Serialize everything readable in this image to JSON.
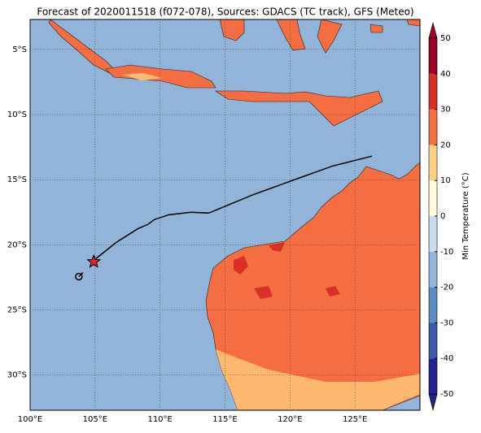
{
  "title": "Forecast of 2020011518 (f072-078), Sources: GDACS (TC track), GFS (Meteo)",
  "map": {
    "lonlim": [
      100,
      130
    ],
    "latlim": [
      -32.7,
      -2.7
    ],
    "lonticks": [
      {
        "value": 100,
        "label": "100°E"
      },
      {
        "value": 105,
        "label": "105°E"
      },
      {
        "value": 110,
        "label": "110°E"
      },
      {
        "value": 115,
        "label": "115°E"
      },
      {
        "value": 120,
        "label": "120°E"
      },
      {
        "value": 125,
        "label": "125°E"
      }
    ],
    "latticks": [
      {
        "value": -5,
        "label": "5°S"
      },
      {
        "value": -10,
        "label": "10°S"
      },
      {
        "value": -15,
        "label": "15°S"
      },
      {
        "value": -20,
        "label": "20°S"
      },
      {
        "value": -25,
        "label": "25°S"
      },
      {
        "value": -30,
        "label": "30°S"
      }
    ],
    "grid": true
  },
  "track": {
    "color": "#000000",
    "lon": [
      105.06,
      105.69,
      106.63,
      108.31,
      109.06,
      109.56,
      110.69,
      112.38,
      113.75,
      117.06,
      120.5,
      123.31,
      126.31
    ],
    "lat": [
      -21.06,
      -20.56,
      -19.81,
      -18.75,
      -18.44,
      -18.06,
      -17.69,
      -17.5,
      -17.56,
      -16.19,
      -14.94,
      -13.94,
      -13.19
    ],
    "storm": {
      "lon": 104.9,
      "lat": -21.3,
      "color": "#e8202a"
    },
    "start": {
      "lon": 103.75,
      "lat": -22.44
    }
  },
  "colorbar": {
    "label": "Min Temperature (°C)",
    "lim": [
      -50,
      50
    ],
    "ticks": [
      -50,
      -40,
      -30,
      -20,
      -10,
      0,
      10,
      20,
      30,
      40,
      50
    ],
    "colors": [
      "#22248c",
      "#3a5aa8",
      "#5c8cc0",
      "#92b4d8",
      "#c7dcec",
      "#fffbdc",
      "#fdcf86",
      "#f46d43",
      "#d73027",
      "#9e0026"
    ]
  }
}
